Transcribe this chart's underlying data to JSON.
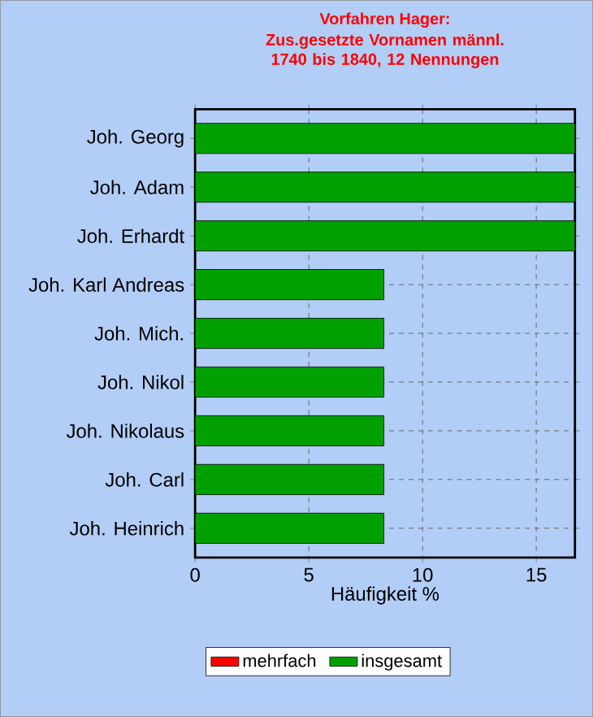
{
  "chart_data": {
    "type": "bar",
    "orientation": "horizontal",
    "title": "Vorfahren Hager:",
    "subtitle": "Zus.gesetzte Vornamen männl. 1740 bis 1840, 12 Nennungen",
    "categories": [
      "Joh. Georg",
      "Joh. Adam",
      "Joh. Erhardt",
      "Joh. Karl Andreas",
      "Joh. Mich.",
      "Joh. Nikol",
      "Joh. Nikolaus",
      "Joh. Carl",
      "Joh. Heinrich"
    ],
    "series": [
      {
        "name": "mehrfach",
        "color": "#ff0000",
        "values": [
          null,
          null,
          null,
          null,
          null,
          null,
          null,
          null,
          null
        ]
      },
      {
        "name": "insgesamt",
        "color": "#00a000",
        "values": [
          16.7,
          16.7,
          16.7,
          8.3,
          8.3,
          8.3,
          8.3,
          8.3,
          8.3
        ]
      }
    ],
    "xlabel": "Häufigkeit %",
    "xlim": [
      0,
      16.7
    ],
    "xticks": [
      0,
      5,
      10,
      15
    ],
    "grid": true,
    "legend": "bottom"
  }
}
